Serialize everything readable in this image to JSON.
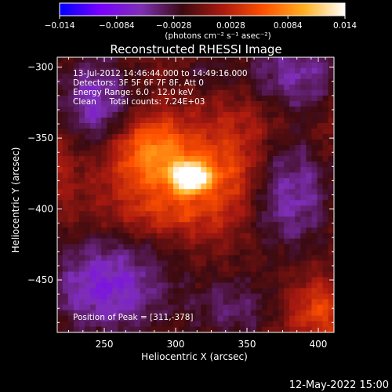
{
  "chart_data": {
    "type": "heatmap",
    "title": "Reconstructed RHESSI Image",
    "info_lines": [
      "13-Jul-2012 14:46:44.000 to 14:49:16.000",
      "Detectors: 3F 5F 6F 7F 8F, Att 0",
      "Energy Range: 6.0 - 12.0 keV",
      "Clean     Total counts: 7.24E+03"
    ],
    "peak_label": "Position of Peak = [311,-378]",
    "peak": {
      "x": 311,
      "y": -378
    },
    "xlabel": "Heliocentric X (arcsec)",
    "ylabel": "Heliocentric Y (arcsec)",
    "xlim": [
      217,
      411
    ],
    "ylim": [
      -487,
      -293
    ],
    "xticks": [
      250,
      300,
      350,
      400
    ],
    "xtick_labels": [
      "250",
      "300",
      "350",
      "400"
    ],
    "yticks": [
      -300,
      -350,
      -400,
      -450
    ],
    "ytick_labels": [
      "−300",
      "−350",
      "−400",
      "−450"
    ],
    "colorbar": {
      "min": -0.014,
      "max": 0.014,
      "tick_labels": [
        "−0.014",
        "−0.0084",
        "−0.0028",
        "0.0028",
        "0.0084",
        "0.014"
      ],
      "tick_values": [
        -0.014,
        -0.0084,
        -0.0028,
        0.0028,
        0.0084,
        0.014
      ],
      "unit_text": "(photons cm⁻² s⁻¹ asec⁻²)",
      "colors": [
        "#0000ff",
        "#7a00ff",
        "#7e2fb5",
        "#3a0a10",
        "#aa1a10",
        "#ff5000",
        "#ffb020",
        "#ffffff"
      ]
    },
    "sources": [
      {
        "x": 311,
        "y": -378,
        "sx": 9,
        "sy": 7,
        "amp": 0.014
      },
      {
        "x": 290,
        "y": -372,
        "sx": 26,
        "sy": 20,
        "amp": 0.0065
      },
      {
        "x": 282,
        "y": -352,
        "sx": 18,
        "sy": 14,
        "amp": 0.004
      },
      {
        "x": 340,
        "y": -375,
        "sx": 18,
        "sy": 22,
        "amp": 0.0045
      },
      {
        "x": 300,
        "y": -405,
        "sx": 28,
        "sy": 10,
        "amp": 0.003
      },
      {
        "x": 355,
        "y": -335,
        "sx": 18,
        "sy": 14,
        "amp": 0.0018
      },
      {
        "x": 400,
        "y": -472,
        "sx": 14,
        "sy": 14,
        "amp": 0.005
      },
      {
        "x": 222,
        "y": -360,
        "sx": 7,
        "sy": 28,
        "amp": 0.002
      },
      {
        "x": 408,
        "y": -340,
        "sx": 6,
        "sy": 18,
        "amp": 0.0015
      }
    ],
    "negative_regions": [
      {
        "x": 243,
        "y": -325,
        "sx": 20,
        "sy": 24,
        "amp": 0.0065
      },
      {
        "x": 385,
        "y": -305,
        "sx": 26,
        "sy": 20,
        "amp": 0.0055
      },
      {
        "x": 380,
        "y": -390,
        "sx": 22,
        "sy": 28,
        "amp": 0.006
      },
      {
        "x": 252,
        "y": -455,
        "sx": 30,
        "sy": 24,
        "amp": 0.0075
      },
      {
        "x": 340,
        "y": -470,
        "sx": 22,
        "sy": 16,
        "amp": 0.004
      },
      {
        "x": 320,
        "y": -305,
        "sx": 14,
        "sy": 8,
        "amp": 0.0025
      }
    ]
  },
  "footer": {
    "date_stamp": "12-May-2022 15:00"
  }
}
